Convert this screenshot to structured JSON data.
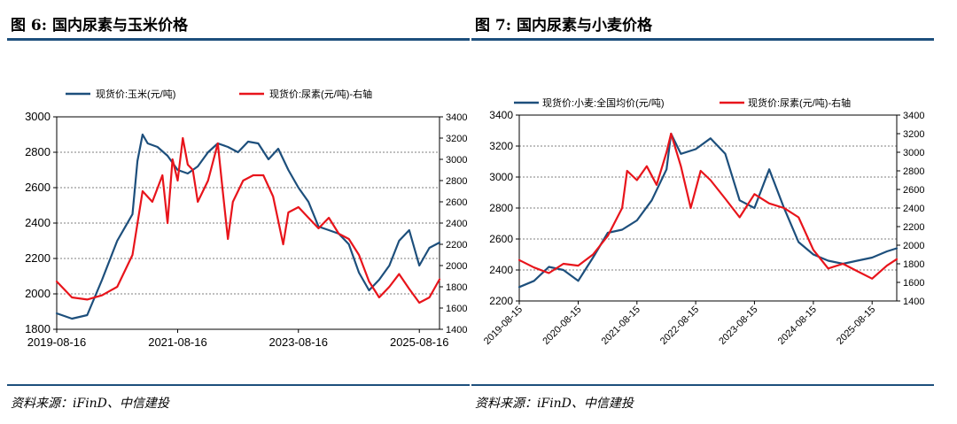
{
  "figures": [
    {
      "title": "图 6:  国内尿素与玉米价格",
      "source": "资料来源：iFinD、中信建投",
      "chart_data": {
        "type": "line",
        "x_tick_labels": [
          "2019-08-16",
          "2021-08-16",
          "2023-08-16",
          "2025-08-16"
        ],
        "y_left": {
          "range": [
            1800,
            3000
          ],
          "ticks": [
            1800,
            2000,
            2200,
            2400,
            2600,
            2800,
            3000
          ]
        },
        "y_right": {
          "range": [
            1400,
            3400
          ],
          "ticks": [
            1400,
            1600,
            1800,
            2000,
            2200,
            2400,
            2600,
            2800,
            3000,
            3200,
            3400
          ]
        },
        "grid": "horizontal-dashed",
        "legend_position": "top",
        "series": [
          {
            "name": "现货价:玉米(元/吨)",
            "axis": "left",
            "color": "#1d4f7c",
            "x": [
              "2019-08-16",
              "2019-11-16",
              "2020-02-16",
              "2020-05-16",
              "2020-08-16",
              "2020-11-16",
              "2020-12-16",
              "2021-01-16",
              "2021-02-16",
              "2021-04-16",
              "2021-06-16",
              "2021-08-16",
              "2021-10-16",
              "2021-12-16",
              "2022-02-16",
              "2022-04-16",
              "2022-06-16",
              "2022-08-16",
              "2022-10-16",
              "2022-12-16",
              "2023-02-16",
              "2023-04-16",
              "2023-06-16",
              "2023-08-16",
              "2023-10-16",
              "2023-12-16",
              "2024-02-16",
              "2024-04-16",
              "2024-06-16",
              "2024-08-16",
              "2024-10-16",
              "2024-12-16",
              "2025-02-16",
              "2025-04-16",
              "2025-06-16",
              "2025-08-16",
              "2025-10-16",
              "2025-12-16"
            ],
            "values": [
              1890,
              1860,
              1880,
              2080,
              2300,
              2450,
              2750,
              2900,
              2850,
              2830,
              2780,
              2700,
              2680,
              2720,
              2800,
              2850,
              2830,
              2800,
              2860,
              2850,
              2760,
              2820,
              2700,
              2600,
              2520,
              2380,
              2360,
              2340,
              2280,
              2120,
              2020,
              2080,
              2160,
              2300,
              2360,
              2160,
              2260,
              2290
            ]
          },
          {
            "name": "现货价:尿素(元/吨)-右轴",
            "axis": "right",
            "color": "#e8141b",
            "x": [
              "2019-08-16",
              "2019-11-16",
              "2020-02-16",
              "2020-05-16",
              "2020-08-16",
              "2020-11-16",
              "2021-01-16",
              "2021-03-16",
              "2021-05-16",
              "2021-06-16",
              "2021-07-16",
              "2021-08-16",
              "2021-09-16",
              "2021-10-16",
              "2021-11-16",
              "2021-12-16",
              "2022-02-16",
              "2022-04-16",
              "2022-05-16",
              "2022-06-16",
              "2022-07-16",
              "2022-09-16",
              "2022-11-16",
              "2023-01-16",
              "2023-03-16",
              "2023-05-16",
              "2023-06-16",
              "2023-08-16",
              "2023-10-16",
              "2023-12-16",
              "2024-02-16",
              "2024-04-16",
              "2024-06-16",
              "2024-08-16",
              "2024-10-16",
              "2024-12-16",
              "2025-02-16",
              "2025-04-16",
              "2025-06-16",
              "2025-08-16",
              "2025-10-16",
              "2025-12-16"
            ],
            "values": [
              1850,
              1700,
              1680,
              1720,
              1800,
              2100,
              2700,
              2600,
              2850,
              2400,
              3000,
              2800,
              3200,
              2950,
              2900,
              2600,
              2800,
              3150,
              2700,
              2250,
              2600,
              2800,
              2850,
              2850,
              2650,
              2200,
              2500,
              2550,
              2450,
              2350,
              2450,
              2300,
              2250,
              2100,
              1850,
              1700,
              1800,
              1920,
              1780,
              1650,
              1700,
              1870
            ]
          }
        ]
      }
    },
    {
      "title": "图 7:  国内尿素与小麦价格",
      "source": "资料来源：iFinD、中信建投",
      "chart_data": {
        "type": "line",
        "x_tick_labels": [
          "2019-08-15",
          "2020-08-15",
          "2021-08-15",
          "2022-08-15",
          "2023-08-15",
          "2024-08-15",
          "2025-08-15"
        ],
        "y_left": {
          "range": [
            2200,
            3400
          ],
          "ticks": [
            2200,
            2400,
            2600,
            2800,
            3000,
            3200,
            3400
          ]
        },
        "y_right": {
          "range": [
            1400,
            3400
          ],
          "ticks": [
            1400,
            1600,
            1800,
            2000,
            2200,
            2400,
            2600,
            2800,
            3000,
            3200,
            3400
          ]
        },
        "grid": "horizontal-dashed",
        "legend_position": "top",
        "series": [
          {
            "name": "现货价:小麦:全国均价(元/吨)",
            "axis": "left",
            "color": "#1d4f7c",
            "x": [
              "2019-08-15",
              "2019-11-15",
              "2020-02-15",
              "2020-05-15",
              "2020-08-15",
              "2020-11-15",
              "2021-02-15",
              "2021-05-15",
              "2021-08-15",
              "2021-11-15",
              "2022-02-15",
              "2022-03-15",
              "2022-05-15",
              "2022-08-15",
              "2022-11-15",
              "2023-02-15",
              "2023-05-15",
              "2023-08-15",
              "2023-11-15",
              "2024-02-15",
              "2024-05-15",
              "2024-08-15",
              "2024-11-15",
              "2025-02-15",
              "2025-05-15",
              "2025-08-15",
              "2025-11-15",
              "2026-01-15"
            ],
            "values": [
              2290,
              2330,
              2420,
              2400,
              2330,
              2480,
              2640,
              2660,
              2720,
              2850,
              3050,
              3280,
              3150,
              3180,
              3250,
              3150,
              2850,
              2800,
              3050,
              2800,
              2580,
              2500,
              2460,
              2440,
              2460,
              2480,
              2520,
              2540
            ]
          },
          {
            "name": "现货价:尿素(元/吨)-右轴",
            "axis": "right",
            "color": "#e8141b",
            "x": [
              "2019-08-15",
              "2019-11-15",
              "2020-02-15",
              "2020-05-15",
              "2020-08-15",
              "2020-11-15",
              "2021-02-15",
              "2021-05-15",
              "2021-06-15",
              "2021-08-15",
              "2021-10-15",
              "2021-12-15",
              "2022-02-15",
              "2022-03-15",
              "2022-05-15",
              "2022-07-15",
              "2022-09-15",
              "2022-11-15",
              "2023-02-15",
              "2023-05-15",
              "2023-08-15",
              "2023-11-15",
              "2024-02-15",
              "2024-05-15",
              "2024-08-15",
              "2024-11-15",
              "2025-02-15",
              "2025-05-15",
              "2025-08-15",
              "2025-11-15",
              "2026-01-15"
            ],
            "values": [
              1840,
              1760,
              1700,
              1800,
              1780,
              1900,
              2100,
              2400,
              2800,
              2700,
              2850,
              2650,
              3000,
              3200,
              2850,
              2400,
              2800,
              2700,
              2500,
              2300,
              2550,
              2450,
              2400,
              2300,
              1950,
              1750,
              1800,
              1720,
              1640,
              1780,
              1850
            ]
          }
        ]
      }
    }
  ]
}
